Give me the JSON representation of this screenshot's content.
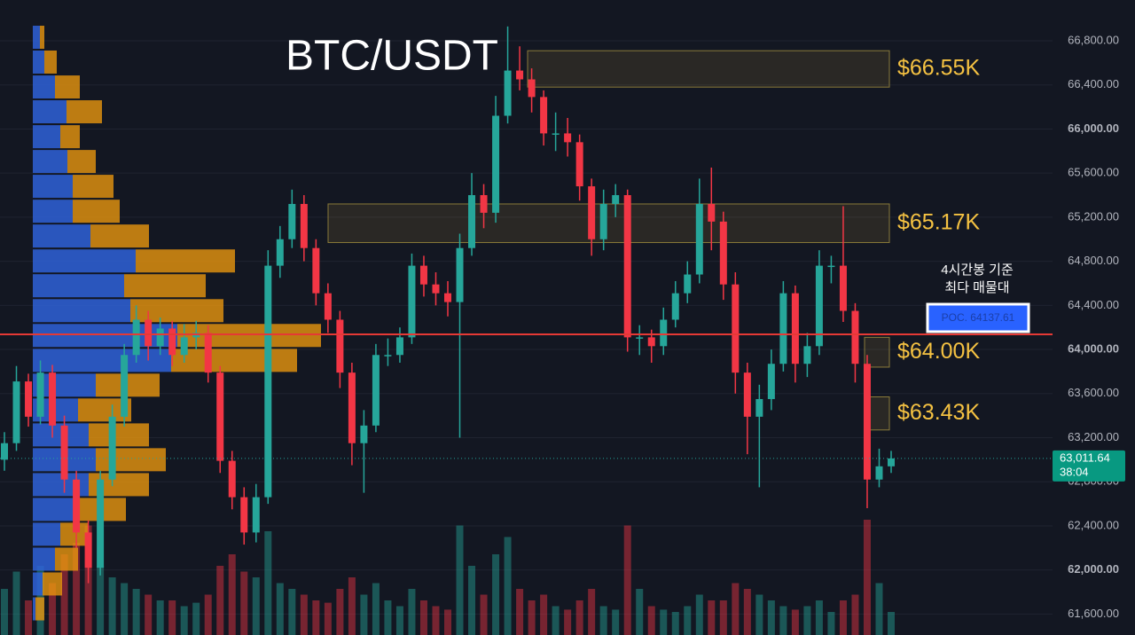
{
  "chart_data": {
    "type": "candlestick",
    "title": "BTC/USDT",
    "open": [
      63000,
      63150,
      63710,
      63390,
      63790,
      63310,
      62820,
      62340,
      62020,
      62820,
      63390,
      63950,
      64270,
      64030,
      64190,
      63950,
      64110,
      64150,
      63790,
      62990,
      62660,
      62340,
      62660,
      64760,
      65000,
      65320,
      64920,
      64510,
      64270,
      63790,
      63150,
      63310,
      63950,
      63950,
      64110,
      64760,
      64590,
      64510,
      64430,
      64920,
      65400,
      65240,
      66120,
      66530,
      66450,
      66290,
      65960,
      65960,
      65880,
      65480,
      65000,
      65320,
      65400,
      64110,
      64110,
      64030,
      64270,
      64510,
      64680,
      65320,
      65160,
      64590,
      63790,
      63390,
      63550,
      63870,
      64510,
      63870,
      64030,
      64760,
      64760,
      64350,
      63870,
      62820,
      62940
    ],
    "high": [
      63250,
      63850,
      63780,
      63900,
      63860,
      63400,
      62900,
      62450,
      62900,
      63500,
      64050,
      64400,
      64350,
      64290,
      64260,
      64230,
      64260,
      64220,
      63850,
      63080,
      62750,
      62780,
      64900,
      65120,
      65450,
      65400,
      65000,
      64600,
      64350,
      63880,
      63450,
      64050,
      64100,
      64200,
      64870,
      64850,
      64700,
      64620,
      65050,
      65600,
      65500,
      66300,
      66930,
      66750,
      66550,
      66350,
      66150,
      66100,
      65950,
      65550,
      65450,
      65500,
      65450,
      64220,
      64180,
      64380,
      64620,
      64800,
      65550,
      65650,
      65250,
      64700,
      63880,
      63680,
      64000,
      64620,
      64580,
      64150,
      64900,
      64850,
      65300,
      64420,
      63950,
      63100,
      63080
    ],
    "low": [
      62900,
      63080,
      63300,
      63320,
      63200,
      62700,
      62200,
      61880,
      61950,
      62760,
      63300,
      63880,
      63900,
      63950,
      63850,
      63880,
      64000,
      63700,
      62880,
      62550,
      62230,
      62250,
      62600,
      64650,
      64920,
      64800,
      64400,
      64150,
      63650,
      62950,
      62700,
      63250,
      63850,
      63880,
      64050,
      64480,
      64400,
      64300,
      63200,
      64850,
      65100,
      65150,
      66050,
      66350,
      66150,
      65850,
      65800,
      65750,
      65350,
      64850,
      64900,
      65200,
      63980,
      63950,
      63880,
      63950,
      64200,
      64420,
      64600,
      64900,
      64450,
      63600,
      63050,
      62750,
      63450,
      63800,
      63700,
      63750,
      63950,
      64600,
      64250,
      63700,
      62560,
      62750,
      62880
    ],
    "close": [
      63150,
      63710,
      63390,
      63790,
      63310,
      62820,
      62340,
      62020,
      62820,
      63390,
      63950,
      64270,
      64030,
      64190,
      63950,
      64110,
      64150,
      63790,
      62990,
      62660,
      62340,
      62660,
      64760,
      65000,
      65320,
      64920,
      64510,
      64270,
      63790,
      63150,
      63310,
      63950,
      63950,
      64110,
      64760,
      64590,
      64510,
      64430,
      64920,
      65400,
      65240,
      66120,
      66530,
      66450,
      66290,
      65960,
      65960,
      65880,
      65480,
      65000,
      65320,
      65400,
      64110,
      64110,
      64030,
      64270,
      64510,
      64680,
      65320,
      65160,
      64590,
      63790,
      63390,
      63550,
      63870,
      64510,
      63870,
      64030,
      64760,
      64760,
      64350,
      63870,
      62820,
      62940,
      63011.64
    ],
    "volume": [
      40,
      55,
      30,
      60,
      45,
      70,
      80,
      95,
      60,
      50,
      45,
      40,
      35,
      30,
      30,
      25,
      28,
      35,
      60,
      70,
      55,
      50,
      90,
      45,
      40,
      35,
      30,
      28,
      40,
      50,
      35,
      45,
      30,
      25,
      40,
      30,
      25,
      22,
      95,
      60,
      35,
      70,
      85,
      40,
      30,
      35,
      25,
      22,
      30,
      40,
      25,
      22,
      95,
      40,
      25,
      22,
      20,
      25,
      35,
      30,
      30,
      45,
      40,
      35,
      30,
      25,
      22,
      25,
      30,
      20,
      30,
      35,
      100,
      45,
      20
    ],
    "up_color": "#26a69a",
    "down_color": "#f23645",
    "ylim": [
      61410,
      67170
    ],
    "yticks": [
      {
        "value": 61600,
        "label": "61,600.00"
      },
      {
        "value": 62000,
        "label": "62,000.00"
      },
      {
        "value": 62400,
        "label": "62,400.00"
      },
      {
        "value": 62800,
        "label": "62,800.00"
      },
      {
        "value": 63200,
        "label": "63,200.00"
      },
      {
        "value": 63600,
        "label": "63,600.00"
      },
      {
        "value": 64000,
        "label": "64,000.00"
      },
      {
        "value": 64400,
        "label": "64,400.00"
      },
      {
        "value": 64800,
        "label": "64,800.00"
      },
      {
        "value": 65200,
        "label": "65,200.00"
      },
      {
        "value": 65600,
        "label": "65,600.00"
      },
      {
        "value": 66000,
        "label": "66,000.00"
      },
      {
        "value": 66400,
        "label": "66,400.00"
      },
      {
        "value": 66800,
        "label": "66,800.00"
      }
    ],
    "grid": true,
    "volume_profile": {
      "prices": [
        66832,
        66607,
        66381,
        66156,
        65930,
        65705,
        65480,
        65254,
        65029,
        64803,
        64578,
        64352,
        64127,
        63901,
        63676,
        63451,
        63225,
        63000,
        62774,
        62549,
        62324,
        62098,
        61873,
        61647
      ],
      "buy": [
        8,
        13,
        25,
        38,
        31,
        39,
        45,
        45,
        65,
        116,
        103,
        110,
        163,
        156,
        71,
        51,
        63,
        71,
        63,
        51,
        31,
        25,
        11,
        3
      ],
      "sell": [
        5,
        14,
        28,
        40,
        22,
        32,
        46,
        53,
        66,
        112,
        92,
        105,
        162,
        142,
        72,
        60,
        68,
        79,
        68,
        54,
        32,
        26,
        22,
        10
      ],
      "buy_color": "#2f62d8",
      "sell_color": "#e8960f"
    },
    "zones": [
      {
        "low": 66380,
        "high": 66710,
        "label": "$66.55K"
      },
      {
        "low": 64970,
        "high": 65320,
        "label": "$65.17K"
      },
      {
        "low": 63840,
        "high": 64110,
        "label": "$64.00K"
      },
      {
        "low": 63270,
        "high": 63570,
        "label": "$63.43K"
      }
    ],
    "poc": {
      "value": 64137.61,
      "label": "POC. 64137.61",
      "note": [
        "4시간봉 기준",
        "최다 매물대"
      ],
      "color": "#e53935"
    },
    "last_price": {
      "value": 63011.64,
      "label": "63,011.64",
      "countdown": "38:04"
    }
  }
}
